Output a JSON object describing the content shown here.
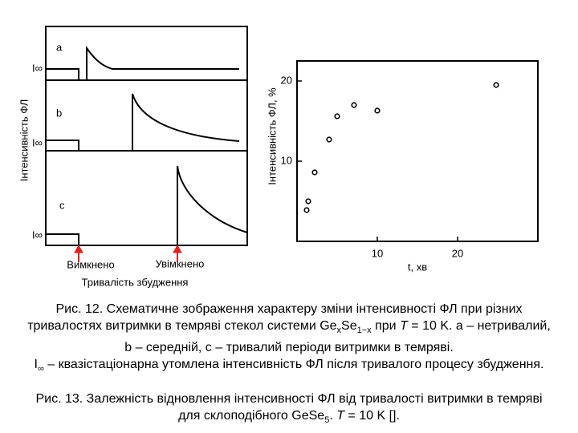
{
  "left_figure": {
    "y_label": "Інтенсивність ФЛ",
    "panels": [
      {
        "label": "a",
        "level_label": "I∞"
      },
      {
        "label": "b",
        "level_label": "I∞"
      },
      {
        "label": "c",
        "level_label": "I∞"
      }
    ],
    "off_label": "Вимкнено",
    "on_label": "Увімкнено",
    "x_label": "Тривалість збудження"
  },
  "chart_data": {
    "type": "scatter",
    "x_label": "t, хв",
    "y_label": "Інтенсивність ФЛ, %",
    "x": [
      1.2,
      1.4,
      2.2,
      4.0,
      5.0,
      7.1,
      10.0,
      24.8
    ],
    "y": [
      3.9,
      5.0,
      8.6,
      12.7,
      15.6,
      17.0,
      16.3,
      19.5
    ],
    "xlim": [
      0,
      30
    ],
    "ylim": [
      0,
      22.5
    ],
    "xticks": [
      10,
      20
    ],
    "yticks": [
      10,
      20
    ],
    "color": "#000000"
  },
  "captions": {
    "fig12": [
      "Рис. 12. Схематичне зображення характеру зміни інтенсивності ФЛ при різних тривалостях витримки в темряві стекол системи Ge",
      "x",
      "Se",
      "1−x",
      " при ",
      "T",
      " = 10 K. a – нетривалий, b – середній, c – тривалий періоди витримки в темряві.",
      "I",
      "∞",
      " – квазістаціонарна утомлена інтенсивність ФЛ після тривалого процесу збудження."
    ],
    "fig13": [
      "Рис. 13. Залежність відновлення інтенсивності ФЛ від тривалості витримки в темряві для склоподібного GeSe",
      "5",
      ". ",
      "T",
      " = 10 K []."
    ]
  }
}
